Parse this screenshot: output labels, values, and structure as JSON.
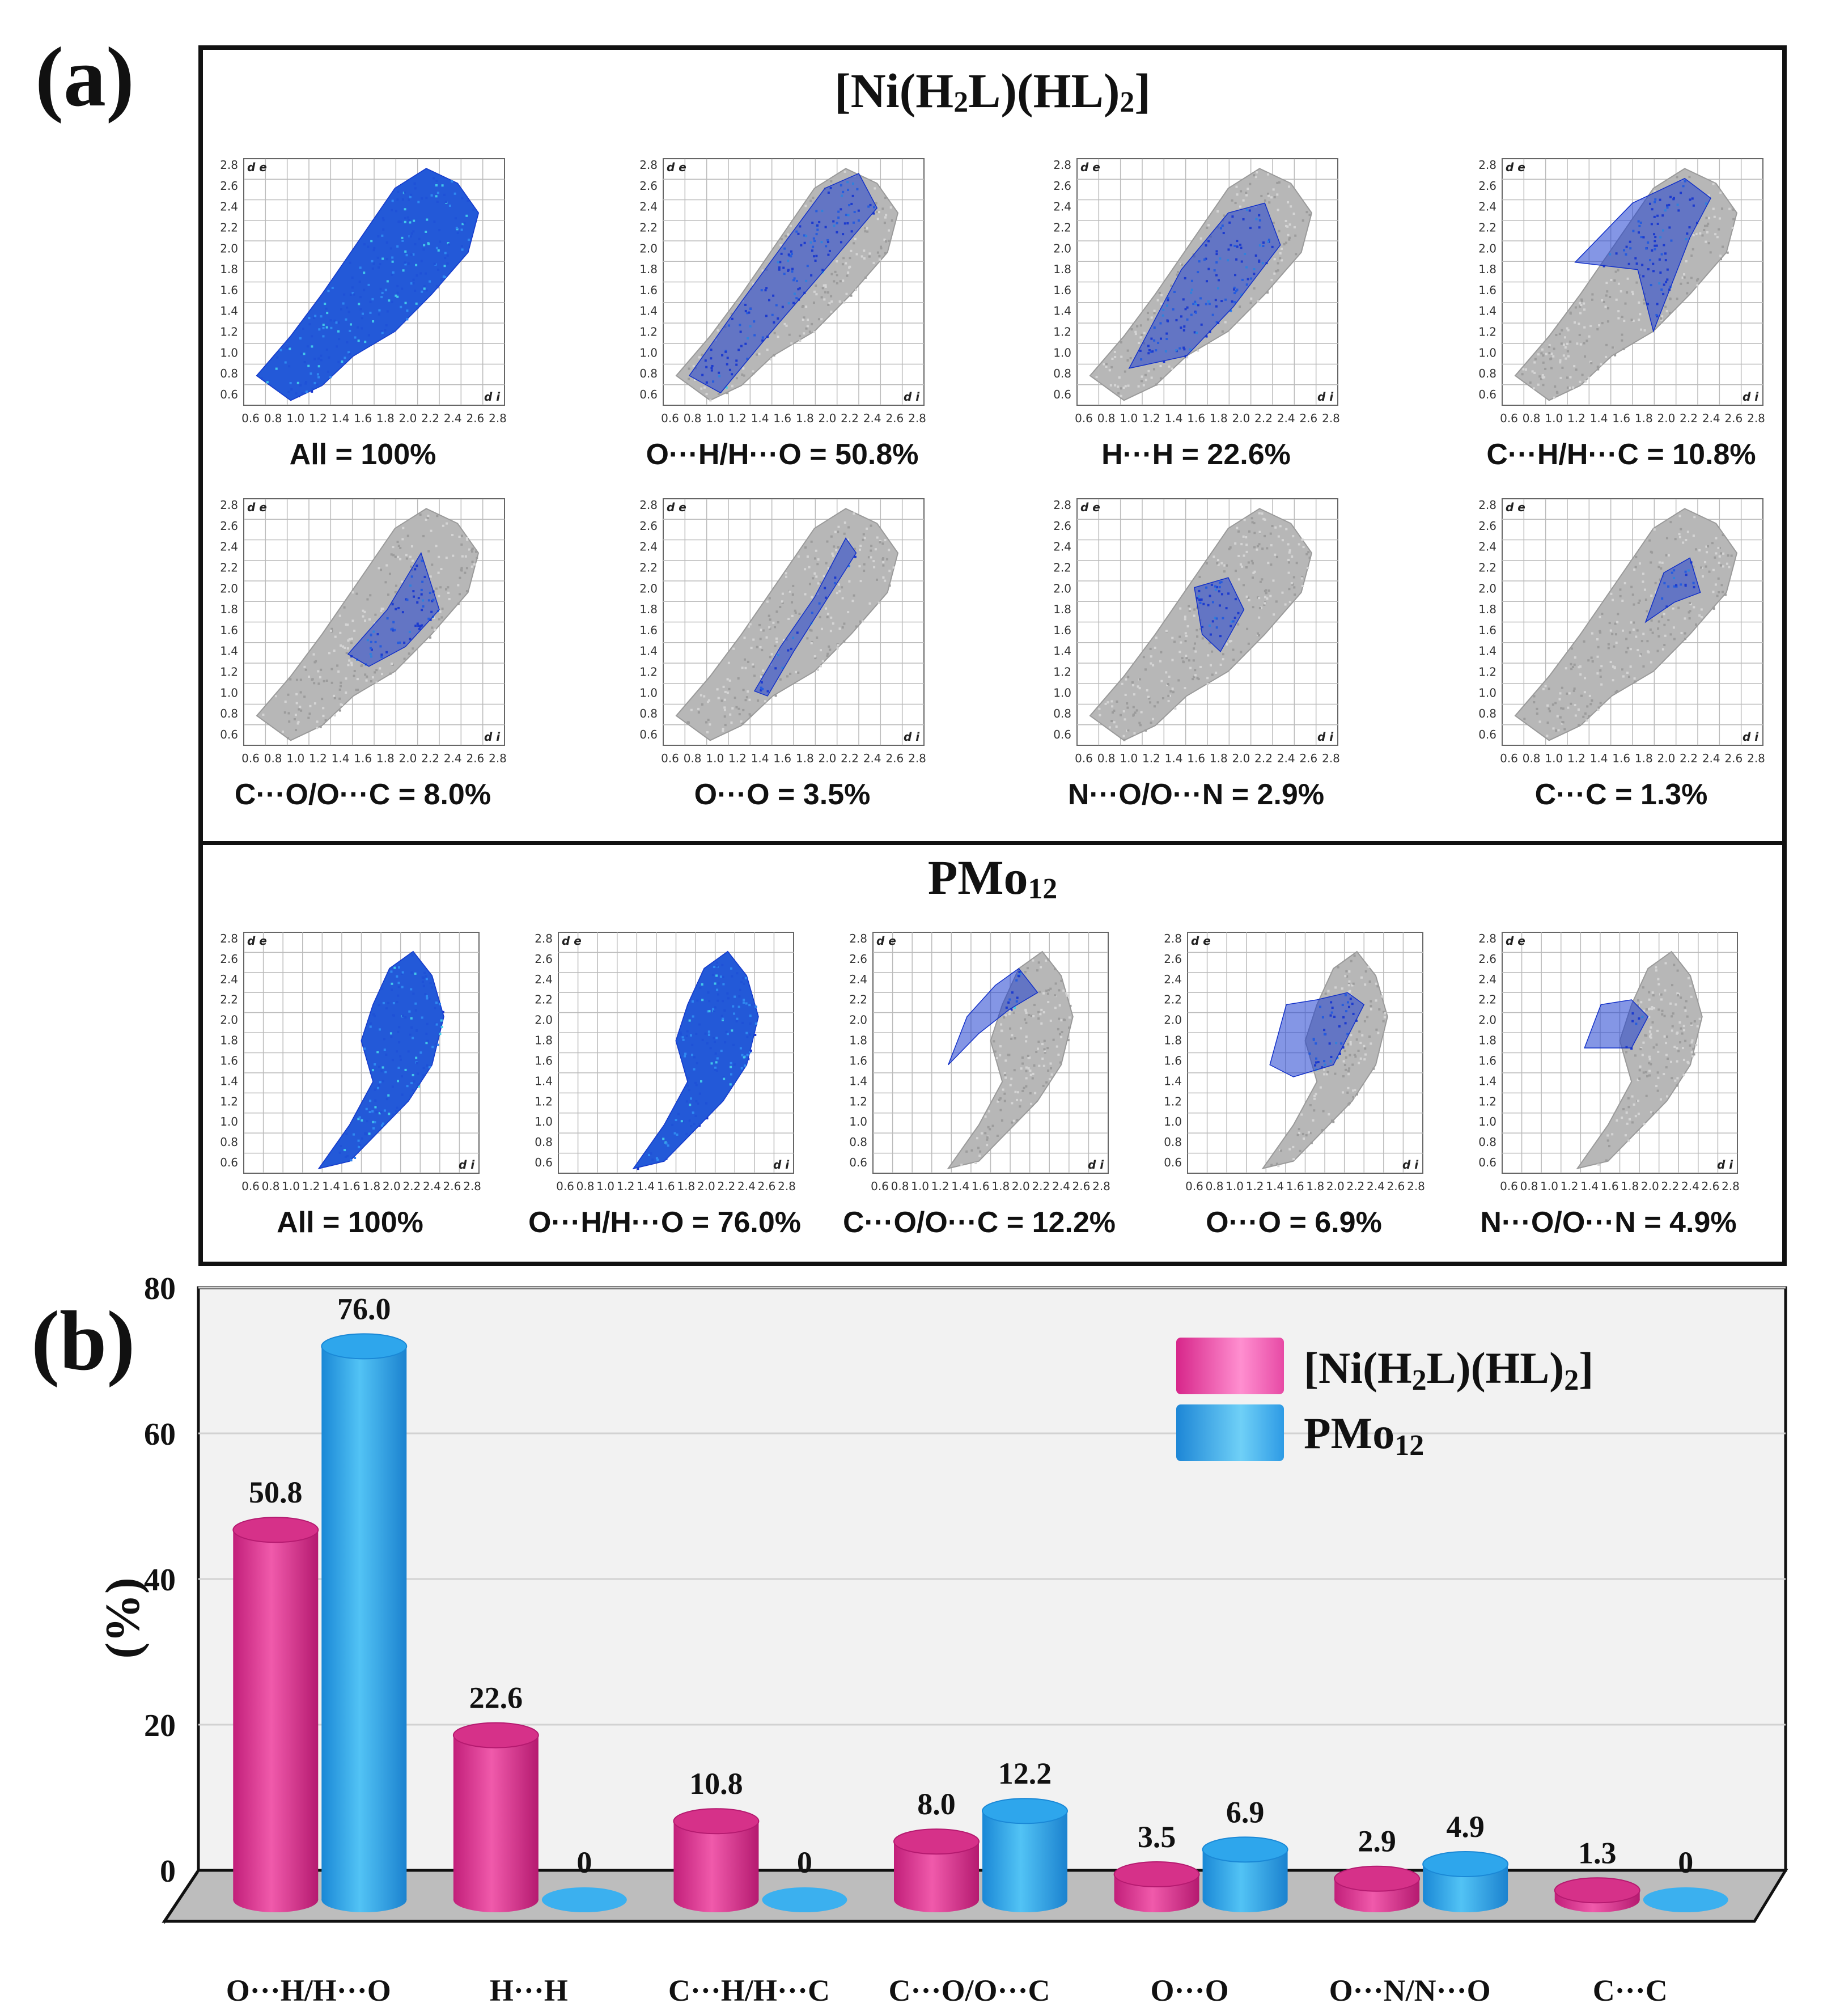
{
  "panel_a": {
    "label": "(a)",
    "section1": {
      "title_main": "[Ni(H",
      "title_sub1": "2",
      "title_mid": "L)(HL)",
      "title_sub2": "2",
      "title_end": "]",
      "plots": [
        {
          "caption": "All = 100%",
          "kind": "all"
        },
        {
          "caption": "O···H/H···O = 50.8%",
          "kind": "oh"
        },
        {
          "caption": "H···H = 22.6%",
          "kind": "hh"
        },
        {
          "caption": "C···H/H···C = 10.8%",
          "kind": "ch"
        },
        {
          "caption": "C···O/O···C = 8.0%",
          "kind": "co"
        },
        {
          "caption": "O···O = 3.5%",
          "kind": "oo"
        },
        {
          "caption": "N···O/O···N = 2.9%",
          "kind": "no"
        },
        {
          "caption": "C···C = 1.3%",
          "kind": "cc"
        }
      ]
    },
    "section2": {
      "title_main": "PMo",
      "title_sub": "12",
      "plots": [
        {
          "caption": "All = 100%",
          "kind": "all"
        },
        {
          "caption": "O···H/H···O = 76.0%",
          "kind": "oh"
        },
        {
          "caption": "C···O/O···C = 12.2%",
          "kind": "co"
        },
        {
          "caption": "O···O = 6.9%",
          "kind": "oo"
        },
        {
          "caption": "N···O/O···N = 4.9%",
          "kind": "no"
        }
      ]
    },
    "axis_ticks": [
      "0.6",
      "0.8",
      "1.0",
      "1.2",
      "1.4",
      "1.6",
      "1.8",
      "2.0",
      "2.2",
      "2.4",
      "2.6",
      "2.8"
    ],
    "y_axis_label": "d e",
    "x_axis_label": "d i"
  },
  "panel_b": {
    "label": "(b)"
  },
  "chart_data": {
    "type": "bar",
    "title": "",
    "ylabel": "(%)",
    "xlabel": "",
    "ylim": [
      0,
      80
    ],
    "yticks": [
      "0",
      "20",
      "40",
      "60",
      "80"
    ],
    "categories": [
      "O···H/H···O",
      "H···H",
      "C···H/H···C",
      "C···O/O···C",
      "O···O",
      "O···N/N···O",
      "C···C"
    ],
    "series": [
      {
        "name": "[Ni(H2L)(HL)2]",
        "color": "#e8409a",
        "values": [
          50.8,
          22.6,
          10.8,
          8.0,
          3.5,
          2.9,
          1.3
        ],
        "labels": [
          "50.8",
          "22.6",
          "10.8",
          "8.0",
          "3.5",
          "2.9",
          "1.3"
        ]
      },
      {
        "name": "PMo12",
        "color": "#2f9fe6",
        "values": [
          76.0,
          0,
          0,
          12.2,
          6.9,
          4.9,
          0
        ],
        "labels": [
          "76.0",
          "0",
          "0",
          "12.2",
          "6.9",
          "4.9",
          "0"
        ]
      }
    ],
    "legend": {
      "position": "top-right",
      "entry1_main": "[Ni(H",
      "entry1_sub1": "2",
      "entry1_mid": "L)(HL)",
      "entry1_sub2": "2",
      "entry1_end": "]",
      "entry2_main": "PMo",
      "entry2_sub": "12"
    }
  }
}
